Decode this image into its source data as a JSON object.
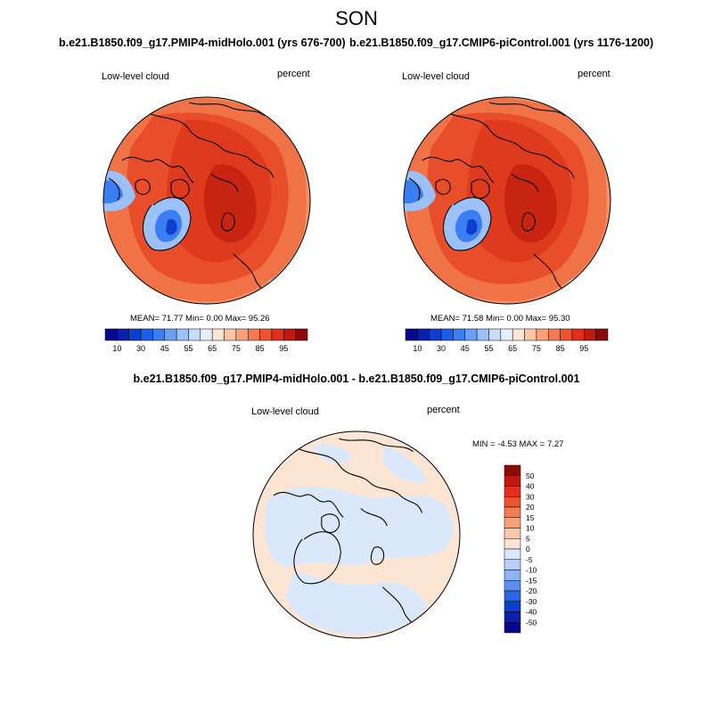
{
  "figure": {
    "title": "SON"
  },
  "panels": [
    {
      "title": "b.e21.B1850.f09_g17.PMIP4-midHolo.001 (yrs 676-700)",
      "left_label": "Low-level cloud",
      "right_label": "percent",
      "stats": "MEAN=  71.77  Min=   0.00  Max=  95.26",
      "colorbar": {
        "orientation": "horizontal",
        "levels": [
          5,
          10,
          20,
          30,
          40,
          45,
          50,
          55,
          60,
          65,
          70,
          75,
          80,
          85,
          90,
          95
        ],
        "tick_labels": [
          "10",
          "30",
          "45",
          "55",
          "65",
          "75",
          "85",
          "95"
        ],
        "colors": [
          "#08088c",
          "#0a1fae",
          "#0d3fcf",
          "#1c5ee8",
          "#3a7ef2",
          "#6a9ff5",
          "#9cc0f8",
          "#c7dbfb",
          "#e6eefc",
          "#fde5d4",
          "#fcc7a8",
          "#f9a07a",
          "#f57a52",
          "#ee532f",
          "#e0301c",
          "#c01a10",
          "#8c0a08"
        ]
      }
    },
    {
      "title": "b.e21.B1850.f09_g17.CMIP6-piControl.001 (yrs 1176-1200)",
      "left_label": "Low-level cloud",
      "right_label": "percent",
      "stats": "MEAN=  71.58  Min=   0.00  Max=  95.30",
      "colorbar": {
        "orientation": "horizontal",
        "levels": [
          5,
          10,
          20,
          30,
          40,
          45,
          50,
          55,
          60,
          65,
          70,
          75,
          80,
          85,
          90,
          95
        ],
        "tick_labels": [
          "10",
          "30",
          "45",
          "55",
          "65",
          "75",
          "85",
          "95"
        ],
        "colors": [
          "#08088c",
          "#0a1fae",
          "#0d3fcf",
          "#1c5ee8",
          "#3a7ef2",
          "#6a9ff5",
          "#9cc0f8",
          "#c7dbfb",
          "#e6eefc",
          "#fde5d4",
          "#fcc7a8",
          "#f9a07a",
          "#f57a52",
          "#ee532f",
          "#e0301c",
          "#c01a10",
          "#8c0a08"
        ]
      }
    },
    {
      "title": "b.e21.B1850.f09_g17.PMIP4-midHolo.001 - b.e21.B1850.f09_g17.CMIP6-piControl.001",
      "left_label": "Low-level cloud",
      "right_label": "percent",
      "stats": "MIN =  -4.53 MAX =   7.27",
      "colorbar": {
        "orientation": "vertical",
        "tick_labels": [
          "50",
          "40",
          "30",
          "20",
          "15",
          "10",
          "5",
          "0",
          "-5",
          "-10",
          "-15",
          "-20",
          "-30",
          "-40",
          "-50"
        ],
        "colors": [
          "#8c0a08",
          "#c01a10",
          "#e0301c",
          "#ee532f",
          "#f57a52",
          "#f9a07a",
          "#fcc7a8",
          "#fde5d4",
          "#dbe8fb",
          "#b8d0f8",
          "#8fb4f5",
          "#5a8ff0",
          "#2a66e4",
          "#0d3fcf",
          "#0a1fae",
          "#08088c"
        ]
      }
    }
  ]
}
